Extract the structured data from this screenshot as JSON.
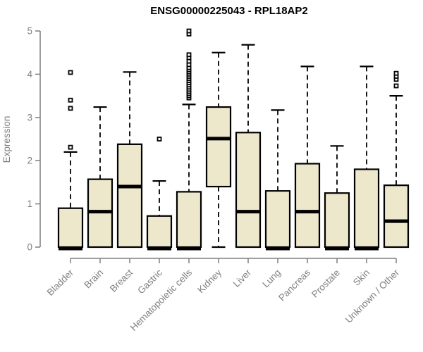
{
  "chart_data": {
    "type": "boxplot",
    "title": "ENSG00000225043 - RPL18AP2",
    "xlabel": "",
    "ylabel": "Expression",
    "ylim": [
      0,
      5
    ],
    "yticks": [
      0,
      1,
      2,
      3,
      4,
      5
    ],
    "grid": false,
    "legend": false,
    "categories": [
      "Bladder",
      "Brain",
      "Breast",
      "Gastric",
      "Hematopoietic cells",
      "Kidney",
      "Liver",
      "Lung",
      "Pancreas",
      "Prostate",
      "Skin",
      "Unknown / Other"
    ],
    "series": [
      {
        "name": "Bladder",
        "low": 0,
        "q1": 0,
        "median": 0,
        "q3": 0.9,
        "high": 2.2,
        "outliers": [
          2.31,
          3.21,
          3.4,
          4.04
        ]
      },
      {
        "name": "Brain",
        "low": 0,
        "q1": 0,
        "median": 0.82,
        "q3": 1.57,
        "high": 3.24,
        "outliers": []
      },
      {
        "name": "Breast",
        "low": 0,
        "q1": 0,
        "median": 1.4,
        "q3": 2.38,
        "high": 4.05,
        "outliers": []
      },
      {
        "name": "Gastric",
        "low": 0,
        "q1": 0,
        "median": 0,
        "q3": 0.72,
        "high": 1.53,
        "outliers": [
          2.5
        ]
      },
      {
        "name": "Hematopoietic cells",
        "low": 0,
        "q1": 0,
        "median": 0,
        "q3": 1.28,
        "high": 3.3,
        "outliers": [
          3.45,
          3.5,
          3.55,
          3.6,
          3.65,
          3.7,
          3.75,
          3.8,
          3.85,
          3.9,
          3.95,
          4.0,
          4.05,
          4.1,
          4.15,
          4.22,
          4.3,
          4.38,
          4.45,
          4.93,
          5.0
        ]
      },
      {
        "name": "Kidney",
        "low": 0,
        "q1": 1.4,
        "median": 2.51,
        "q3": 3.24,
        "high": 4.5,
        "outliers": []
      },
      {
        "name": "Liver",
        "low": 0,
        "q1": 0,
        "median": 0.82,
        "q3": 2.65,
        "high": 4.68,
        "outliers": []
      },
      {
        "name": "Lung",
        "low": 0,
        "q1": 0,
        "median": 0,
        "q3": 1.3,
        "high": 3.17,
        "outliers": []
      },
      {
        "name": "Pancreas",
        "low": 0,
        "q1": 0,
        "median": 0.82,
        "q3": 1.93,
        "high": 4.18,
        "outliers": []
      },
      {
        "name": "Prostate",
        "low": 0,
        "q1": 0,
        "median": 0,
        "q3": 1.25,
        "high": 2.34,
        "outliers": []
      },
      {
        "name": "Skin",
        "low": 0,
        "q1": 0,
        "median": 0,
        "q3": 1.8,
        "high": 4.18,
        "outliers": []
      },
      {
        "name": "Unknown / Other",
        "low": 0,
        "q1": 0,
        "median": 0.6,
        "q3": 1.43,
        "high": 3.5,
        "outliers": [
          3.73,
          3.88,
          3.95,
          4.02
        ]
      }
    ],
    "colors": {
      "box_fill": "#EDE7CC",
      "box_border": "#000000",
      "median": "#000000",
      "whisker": "#000000",
      "axis": "#7F7F7F",
      "tick_labels": "#7F7F7F",
      "title": "#000000",
      "background": "#FFFFFF"
    }
  }
}
